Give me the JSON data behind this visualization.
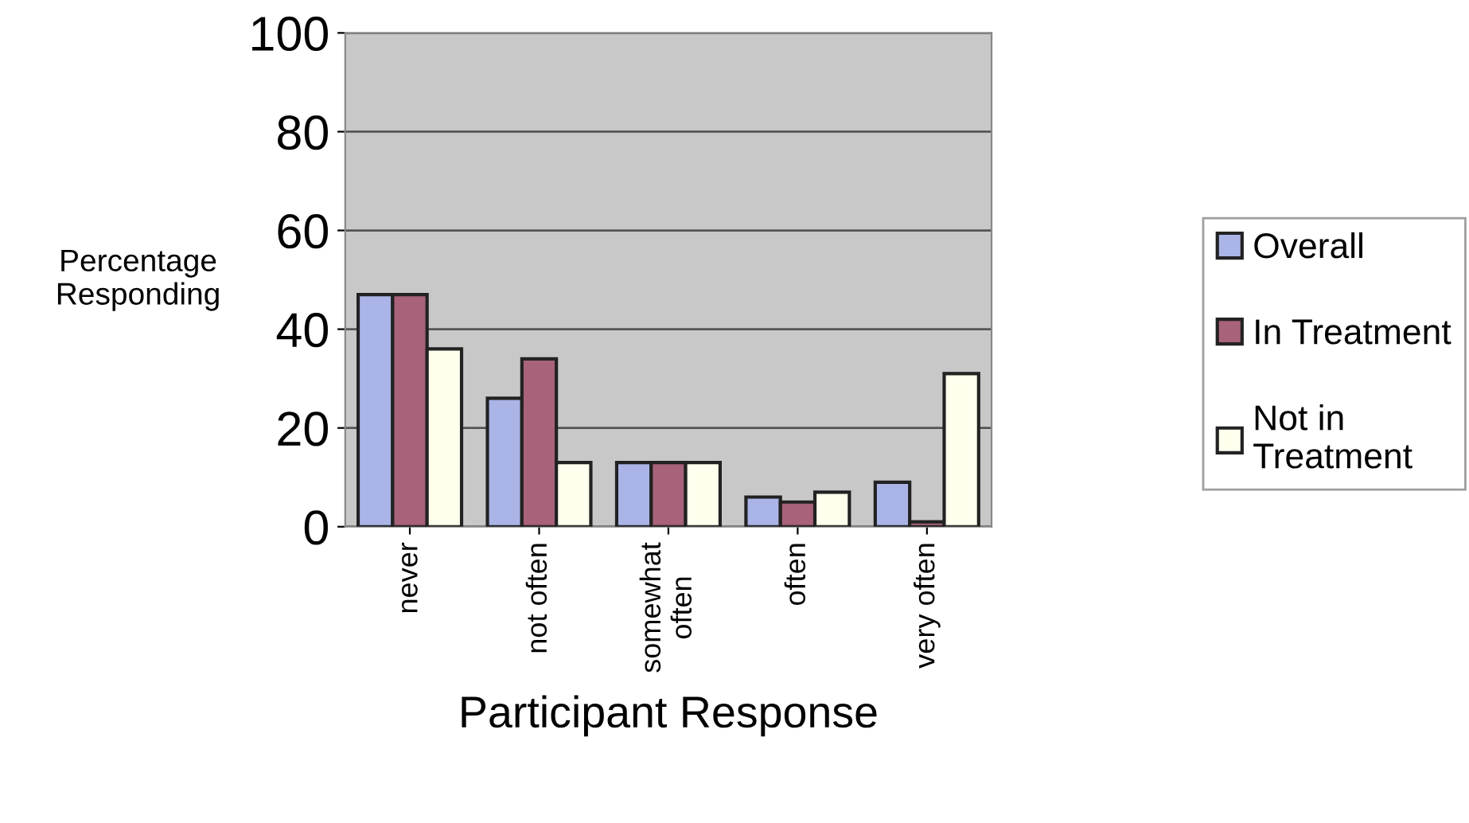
{
  "chart_data": {
    "type": "bar",
    "xlabel": "Participant Response",
    "ylabel": "Percentage\nResponding",
    "categories": [
      "never",
      "not often",
      "somewhat\noften",
      "often",
      "very often"
    ],
    "series": [
      {
        "name": "Overall",
        "color": "#aab4e6",
        "values": [
          47,
          26,
          13,
          6,
          9
        ]
      },
      {
        "name": "In Treatment",
        "color": "#a8627a",
        "values": [
          47,
          34,
          13,
          5,
          1
        ]
      },
      {
        "name": "Not in\nTreatment",
        "color": "#ffffee",
        "values": [
          36,
          13,
          13,
          7,
          31
        ]
      }
    ],
    "ylim": [
      0,
      100
    ],
    "yticks": [
      0,
      20,
      40,
      60,
      80,
      100
    ],
    "grid": "y",
    "legend": "right"
  }
}
